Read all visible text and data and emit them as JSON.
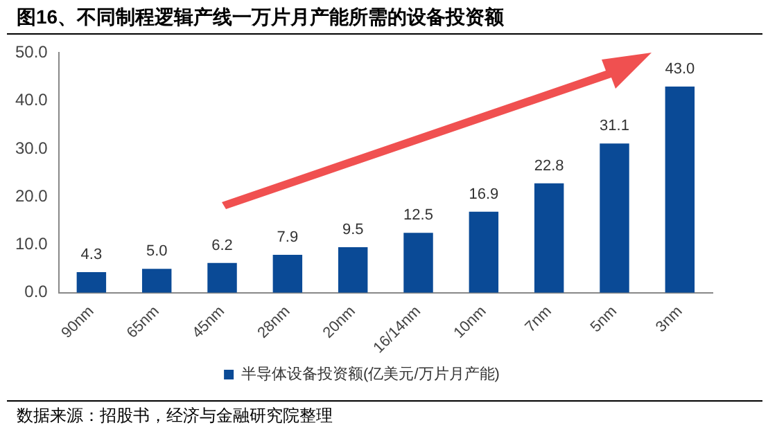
{
  "chart_data": {
    "type": "bar",
    "title": "图16、不同制程逻辑产线一万片月产能所需的设备投资额",
    "categories": [
      "90nm",
      "65nm",
      "45nm",
      "28nm",
      "20nm",
      "16/14nm",
      "10nm",
      "7nm",
      "5nm",
      "3nm"
    ],
    "series": [
      {
        "name": "半导体设备投资额(亿美元/万片月产能)",
        "color": "#0a4a96",
        "values": [
          4.3,
          5.0,
          6.2,
          7.9,
          9.5,
          12.5,
          16.9,
          22.8,
          31.1,
          43.0
        ],
        "value_labels": [
          "4.3",
          "5.0",
          "6.2",
          "7.9",
          "9.5",
          "12.5",
          "16.9",
          "22.8",
          "31.1",
          "43.0"
        ]
      }
    ],
    "ylim": [
      0,
      50
    ],
    "yticks": [
      {
        "value": 0,
        "label": "0.0"
      },
      {
        "value": 10,
        "label": "10.0"
      },
      {
        "value": 20,
        "label": "20.0"
      },
      {
        "value": 30,
        "label": "30.0"
      },
      {
        "value": 40,
        "label": "40.0"
      },
      {
        "value": 50,
        "label": "50.0"
      }
    ],
    "grid": false,
    "legend": "bottom",
    "annotations": [
      "数据来源：招股书，经济与金融研究院整理"
    ]
  }
}
